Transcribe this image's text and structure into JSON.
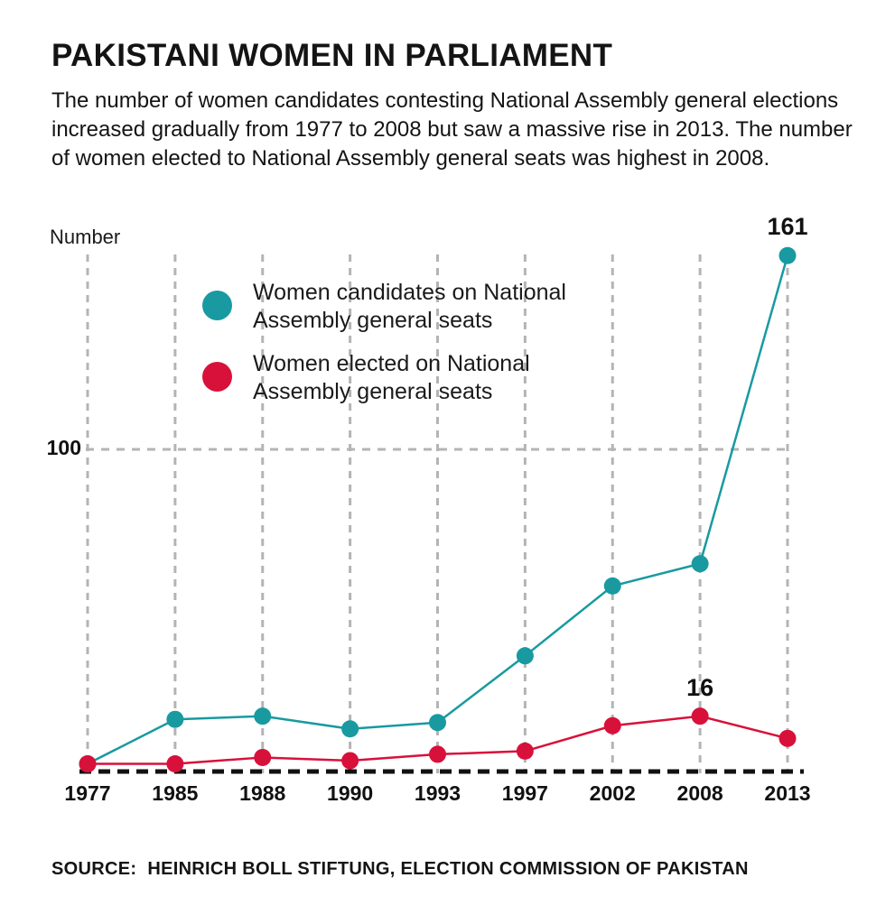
{
  "header": {
    "title": "PAKISTANI WOMEN IN PARLIAMENT",
    "subtitle": "The number of women candidates contesting National Assembly general elections increased gradually from 1977 to 2008 but saw a massive rise in 2013. The number of women elected to National Assembly general seats was highest in 2008."
  },
  "axis": {
    "unit_label": "Number",
    "y_tick_label": "100"
  },
  "source": {
    "label": "SOURCE:",
    "text": "HEINRICH BOLL STIFTUNG, ELECTION COMMISSION OF PAKISTAN"
  },
  "colors": {
    "teal": "#189aa0",
    "red": "#d8113a",
    "grid_gray": "#b4b4b4",
    "baseline_black": "#111111"
  },
  "chart_data": {
    "type": "line",
    "title": "PAKISTANI WOMEN IN PARLIAMENT",
    "ylabel": "Number",
    "xlabel": "",
    "categories": [
      "1977",
      "1985",
      "1988",
      "1990",
      "1993",
      "1997",
      "2002",
      "2008",
      "2013"
    ],
    "series": [
      {
        "name": "Women candidates on National Assembly general seats",
        "color_key": "teal",
        "values": [
          1,
          15,
          16,
          12,
          14,
          35,
          57,
          64,
          161
        ]
      },
      {
        "name": "Women elected on National Assembly general seats",
        "color_key": "red",
        "values": [
          1,
          1,
          3,
          2,
          4,
          5,
          13,
          16,
          9
        ]
      }
    ],
    "annotations": [
      {
        "series": 0,
        "category": "2013",
        "text": "161"
      },
      {
        "series": 1,
        "category": "2008",
        "text": "16"
      }
    ],
    "ylim": [
      0,
      170
    ],
    "y_gridline_value": 100,
    "grid": "dashed vertical line per category, dashed horizontal line at 100, dashed black baseline at 0",
    "legend_position": "top-left inside plot area"
  }
}
